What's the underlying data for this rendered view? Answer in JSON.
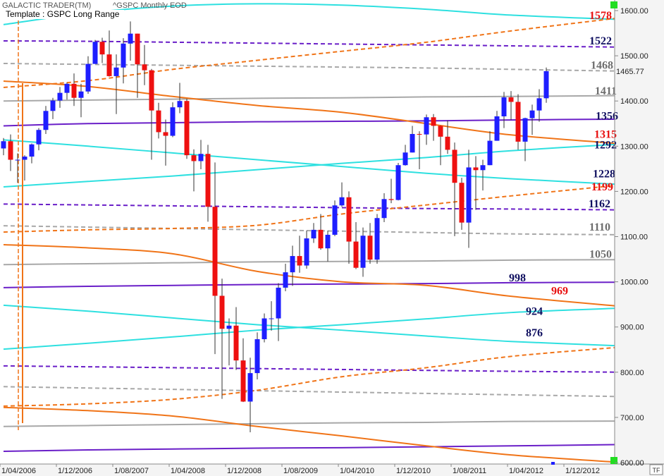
{
  "chart_data": {
    "type": "candlestick",
    "app_title": "GALACTIC TRADER(TM)",
    "symbol_title": "^GSPC Monthly EOD",
    "template": "Template : GSPC Long Range",
    "ylim": [
      600,
      1625
    ],
    "yticks": [
      {
        "value": 600,
        "label": "600.00"
      },
      {
        "value": 700,
        "label": "700.00"
      },
      {
        "value": 800,
        "label": "800.00"
      },
      {
        "value": 900,
        "label": "900.00"
      },
      {
        "value": 1000,
        "label": "1000.00"
      },
      {
        "value": 1100,
        "label": "1100.00"
      },
      {
        "value": 1200,
        "label": "1200.00"
      },
      {
        "value": 1300,
        "label": "1300.00"
      },
      {
        "value": 1400,
        "label": "1400.00"
      },
      {
        "value": 1500,
        "label": "1500.00"
      },
      {
        "value": 1600,
        "label": "1600.00"
      }
    ],
    "xticks": [
      "1/04/2006",
      "1/12/2006",
      "1/08/2007",
      "1/04/2008",
      "1/12/2008",
      "1/08/2009",
      "1/04/2010",
      "1/12/2010",
      "1/08/2011",
      "1/04/2012",
      "1/12/2012"
    ],
    "up_color": "#1e1eff",
    "down_color": "#ee1010",
    "x": [
      "1/04/2006",
      "1/05/2006",
      "1/06/2006",
      "1/07/2006",
      "1/08/2006",
      "1/09/2006",
      "1/10/2006",
      "1/11/2006",
      "1/12/2006",
      "1/01/2007",
      "1/02/2007",
      "1/03/2007",
      "1/04/2007",
      "1/05/2007",
      "1/06/2007",
      "1/07/2007",
      "1/08/2007",
      "1/09/2007",
      "1/10/2007",
      "1/11/2007",
      "1/12/2007",
      "1/01/2008",
      "1/02/2008",
      "1/03/2008",
      "1/04/2008",
      "1/05/2008",
      "1/06/2008",
      "1/07/2008",
      "1/08/2008",
      "1/09/2008",
      "1/10/2008",
      "1/11/2008",
      "1/12/2008",
      "1/01/2009",
      "1/02/2009",
      "1/03/2009",
      "1/04/2009",
      "1/05/2009",
      "1/06/2009",
      "1/07/2009",
      "1/08/2009",
      "1/09/2009",
      "1/10/2009",
      "1/11/2009",
      "1/12/2009",
      "1/01/2010",
      "1/02/2010",
      "1/03/2010",
      "1/04/2010",
      "1/05/2010",
      "1/06/2010",
      "1/07/2010",
      "1/08/2010",
      "1/09/2010",
      "1/10/2010",
      "1/11/2010",
      "1/12/2010",
      "1/01/2011",
      "1/02/2011",
      "1/03/2011",
      "1/04/2011",
      "1/05/2011",
      "1/06/2011",
      "1/07/2011",
      "1/08/2011",
      "1/09/2011",
      "1/10/2011",
      "1/11/2011",
      "1/12/2011",
      "1/01/2012",
      "1/02/2012",
      "1/03/2012",
      "1/04/2012",
      "1/05/2012",
      "1/06/2012",
      "1/07/2012",
      "1/08/2012",
      "1/09/2012"
    ],
    "open": [
      1295,
      1311,
      1270,
      1270,
      1277,
      1304,
      1336,
      1378,
      1401,
      1418,
      1438,
      1407,
      1421,
      1482,
      1531,
      1503,
      1455,
      1474,
      1527,
      1549,
      1481,
      1468,
      1379,
      1331,
      1323,
      1386,
      1400,
      1280,
      1267,
      1283,
      1166,
      969,
      896,
      903,
      826,
      735,
      798,
      873,
      919,
      919,
      987,
      1021,
      1057,
      1036,
      1096,
      1115,
      1074,
      1104,
      1169,
      1187,
      1089,
      1031,
      1102,
      1049,
      1141,
      1183,
      1181,
      1258,
      1286,
      1327,
      1326,
      1364,
      1345,
      1321,
      1292,
      1219,
      1131,
      1253,
      1247,
      1258,
      1312,
      1366,
      1408,
      1398,
      1310,
      1362,
      1379,
      1406
    ],
    "high": [
      1318,
      1326,
      1284,
      1280,
      1306,
      1340,
      1389,
      1407,
      1431,
      1441,
      1461,
      1438,
      1499,
      1535,
      1540,
      1556,
      1503,
      1539,
      1576,
      1549,
      1524,
      1471,
      1396,
      1359,
      1397,
      1440,
      1405,
      1293,
      1314,
      1303,
      1264,
      1007,
      919,
      944,
      875,
      832,
      888,
      930,
      957,
      997,
      1040,
      1080,
      1102,
      1113,
      1130,
      1150,
      1113,
      1180,
      1220,
      1200,
      1132,
      1120,
      1130,
      1150,
      1196,
      1228,
      1263,
      1303,
      1345,
      1333,
      1370,
      1371,
      1346,
      1357,
      1308,
      1230,
      1292,
      1278,
      1270,
      1333,
      1378,
      1420,
      1422,
      1415,
      1363,
      1392,
      1426,
      1474
    ],
    "low": [
      1280,
      1245,
      1219,
      1224,
      1262,
      1291,
      1327,
      1360,
      1385,
      1403,
      1389,
      1364,
      1416,
      1482,
      1484,
      1454,
      1371,
      1439,
      1489,
      1407,
      1435,
      1270,
      1317,
      1257,
      1320,
      1373,
      1272,
      1200,
      1249,
      1133,
      840,
      741,
      815,
      805,
      734,
      667,
      784,
      866,
      892,
      869,
      979,
      991,
      1020,
      1029,
      1086,
      1071,
      1045,
      1101,
      1166,
      1040,
      1028,
      1011,
      1040,
      1040,
      1132,
      1174,
      1180,
      1257,
      1286,
      1249,
      1303,
      1312,
      1258,
      1283,
      1101,
      1115,
      1075,
      1159,
      1202,
      1258,
      1312,
      1340,
      1358,
      1292,
      1267,
      1325,
      1354,
      1396
    ],
    "close": [
      1311,
      1270,
      1270,
      1277,
      1304,
      1336,
      1378,
      1401,
      1418,
      1438,
      1407,
      1421,
      1482,
      1531,
      1503,
      1455,
      1474,
      1527,
      1549,
      1481,
      1468,
      1379,
      1331,
      1323,
      1386,
      1400,
      1280,
      1267,
      1283,
      1166,
      969,
      896,
      903,
      826,
      735,
      798,
      873,
      919,
      919,
      987,
      1021,
      1057,
      1036,
      1096,
      1115,
      1074,
      1104,
      1169,
      1187,
      1089,
      1031,
      1102,
      1049,
      1141,
      1183,
      1181,
      1258,
      1286,
      1327,
      1326,
      1364,
      1345,
      1321,
      1292,
      1219,
      1131,
      1253,
      1247,
      1258,
      1312,
      1366,
      1408,
      1398,
      1310,
      1362,
      1379,
      1406,
      1466
    ],
    "last_price": 1465.77,
    "levels": [
      {
        "value": 1578,
        "color": "#e81010"
      },
      {
        "value": 1522,
        "color": "#101060"
      },
      {
        "value": 1468,
        "color": "#6e6e6e"
      },
      {
        "value": 1411,
        "color": "#6e6e6e"
      },
      {
        "value": 1356,
        "color": "#101060"
      },
      {
        "value": 1315,
        "color": "#e81010"
      },
      {
        "value": 1292,
        "color": "#101060"
      },
      {
        "value": 1228,
        "color": "#101060"
      },
      {
        "value": 1199,
        "color": "#e81010"
      },
      {
        "value": 1162,
        "color": "#101060"
      },
      {
        "value": 1110,
        "color": "#6e6e6e"
      },
      {
        "value": 1050,
        "color": "#6e6e6e"
      },
      {
        "value": 998,
        "color": "#101060"
      },
      {
        "value": 969,
        "color": "#e81010"
      },
      {
        "value": 924,
        "color": "#101060"
      },
      {
        "value": 876,
        "color": "#101060"
      }
    ],
    "lines": {
      "x": [
        "1/04/2006",
        "1/04/2007",
        "1/04/2008",
        "1/04/2009",
        "1/04/2010",
        "1/04/2011",
        "1/04/2012",
        "1/08/2013"
      ],
      "series": [
        {
          "color": "#2ee0e0",
          "dash": false,
          "values": [
            1569,
            1595,
            1610,
            1615,
            1612,
            1603,
            1590,
            1580
          ]
        },
        {
          "color": "#2ee0e0",
          "dash": false,
          "values": [
            1314,
            1300,
            1285,
            1270,
            1255,
            1240,
            1228,
            1215
          ]
        },
        {
          "color": "#2ee0e0",
          "dash": false,
          "values": [
            1210,
            1222,
            1234,
            1248,
            1262,
            1275,
            1290,
            1305
          ]
        },
        {
          "color": "#2ee0e0",
          "dash": false,
          "values": [
            948,
            935,
            920,
            905,
            893,
            880,
            868,
            858
          ]
        },
        {
          "color": "#2ee0e0",
          "dash": false,
          "values": [
            851,
            864,
            878,
            893,
            905,
            918,
            932,
            942
          ]
        },
        {
          "color": "#6a1fc8",
          "dash": false,
          "values": [
            1345,
            1350,
            1352,
            1354,
            1355,
            1356,
            1358,
            1360
          ]
        },
        {
          "color": "#6a1fc8",
          "dash": false,
          "values": [
            987,
            990,
            992,
            994,
            995,
            996,
            998,
            999
          ]
        },
        {
          "color": "#6a1fc8",
          "dash": false,
          "values": [
            625,
            628,
            630,
            632,
            633,
            635,
            637,
            640
          ]
        },
        {
          "color": "#6a1fc8",
          "dash": true,
          "values": [
            1533,
            1532,
            1530,
            1528,
            1526,
            1524,
            1522,
            1519
          ]
        },
        {
          "color": "#6a1fc8",
          "dash": true,
          "values": [
            1172,
            1170,
            1168,
            1166,
            1164,
            1162,
            1161,
            1159
          ]
        },
        {
          "color": "#6a1fc8",
          "dash": true,
          "values": [
            814,
            812,
            810,
            808,
            806,
            804,
            802,
            800
          ]
        },
        {
          "color": "#a8a8a8",
          "dash": true,
          "values": [
            1483,
            1481,
            1479,
            1477,
            1475,
            1473,
            1470,
            1466
          ]
        },
        {
          "color": "#a8a8a8",
          "dash": true,
          "values": [
            1124,
            1121,
            1118,
            1115,
            1112,
            1109,
            1106,
            1104
          ]
        },
        {
          "color": "#a8a8a8",
          "dash": true,
          "values": [
            768,
            765,
            762,
            759,
            756,
            753,
            750,
            746
          ]
        },
        {
          "color": "#a8a8a8",
          "dash": false,
          "values": [
            1400,
            1402,
            1404,
            1406,
            1407,
            1409,
            1410,
            1412
          ]
        },
        {
          "color": "#a8a8a8",
          "dash": false,
          "values": [
            1038,
            1040,
            1042,
            1044,
            1045,
            1046,
            1048,
            1049
          ]
        },
        {
          "color": "#a8a8a8",
          "dash": false,
          "values": [
            680,
            682,
            684,
            686,
            688,
            689,
            691,
            692
          ]
        },
        {
          "color": "#f07418",
          "dash": false,
          "values": [
            1444,
            1432,
            1410,
            1390,
            1375,
            1350,
            1325,
            1305
          ]
        },
        {
          "color": "#f07418",
          "dash": false,
          "values": [
            1082,
            1075,
            1062,
            1023,
            1000,
            992,
            968,
            945
          ]
        },
        {
          "color": "#f07418",
          "dash": false,
          "values": [
            722,
            715,
            703,
            680,
            659,
            637,
            617,
            600
          ]
        },
        {
          "color": "#f07418",
          "dash": true,
          "values": [
            1430,
            1445,
            1470,
            1490,
            1510,
            1530,
            1555,
            1585
          ]
        },
        {
          "color": "#f07418",
          "dash": true,
          "values": [
            1110,
            1115,
            1118,
            1125,
            1150,
            1170,
            1190,
            1215
          ]
        },
        {
          "color": "#f07418",
          "dash": true,
          "values": [
            725,
            730,
            740,
            760,
            790,
            810,
            835,
            856
          ]
        }
      ]
    },
    "timeframe": "TF"
  }
}
